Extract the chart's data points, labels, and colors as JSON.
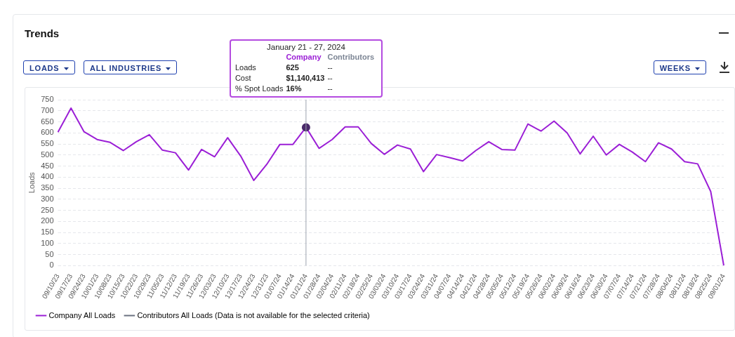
{
  "chart_data": {
    "type": "line",
    "title": "Trends",
    "ylabel": "Loads",
    "categories": [
      "09/10/23",
      "09/17/23",
      "09/24/23",
      "10/01/23",
      "10/08/23",
      "10/15/23",
      "10/22/23",
      "10/29/23",
      "11/05/23",
      "11/12/23",
      "11/19/23",
      "11/26/23",
      "12/03/23",
      "12/10/23",
      "12/17/23",
      "12/24/23",
      "12/31/23",
      "01/07/24",
      "01/14/24",
      "01/21/24",
      "01/28/24",
      "02/04/24",
      "02/11/24",
      "02/18/24",
      "02/25/24",
      "03/03/24",
      "03/10/24",
      "03/17/24",
      "03/24/24",
      "03/31/24",
      "04/07/24",
      "04/14/24",
      "04/21/24",
      "04/28/24",
      "05/05/24",
      "05/12/24",
      "05/19/24",
      "05/26/24",
      "06/02/24",
      "06/09/24",
      "06/16/24",
      "06/23/24",
      "06/30/24",
      "07/07/24",
      "07/14/24",
      "07/21/24",
      "07/28/24",
      "08/04/24",
      "08/11/24",
      "08/18/24",
      "08/25/24",
      "09/01/24"
    ],
    "series": [
      {
        "name": "Company All Loads",
        "color": "#9b1fd6",
        "values": [
          603,
          712,
          605,
          570,
          557,
          520,
          560,
          592,
          522,
          510,
          432,
          525,
          492,
          578,
          495,
          385,
          458,
          548,
          548,
          625,
          530,
          570,
          627,
          627,
          552,
          503,
          545,
          527,
          425,
          502,
          488,
          473,
          520,
          560,
          525,
          522,
          640,
          608,
          653,
          600,
          505,
          585,
          500,
          548,
          513,
          470,
          555,
          527,
          470,
          460,
          335,
          0
        ]
      },
      {
        "name": "Contributors All Loads (Data is not available for the selected criteria)",
        "color": "#6b7280",
        "values": [
          null,
          null,
          null,
          null,
          null,
          null,
          null,
          null,
          null,
          null,
          null,
          null,
          null,
          null,
          null,
          null,
          null,
          null,
          null,
          null,
          null,
          null,
          null,
          null,
          null,
          null,
          null,
          null,
          null,
          null,
          null,
          null,
          null,
          null,
          null,
          null,
          null,
          null,
          null,
          null,
          null,
          null,
          null,
          null,
          null,
          null,
          null,
          null,
          null,
          null,
          null,
          null
        ]
      }
    ],
    "ylim": [
      0,
      750
    ],
    "yticks": [
      0,
      50,
      100,
      150,
      200,
      250,
      300,
      350,
      400,
      450,
      500,
      550,
      600,
      650,
      700,
      750
    ],
    "grid": "y",
    "legend": "bottom left",
    "marker": "none",
    "line_style": "solid",
    "ref_lines": [
      {
        "axis": "x",
        "value": "01/21/24",
        "color": "#9ca3af"
      }
    ],
    "annotations": [
      "LOADS",
      "ALL INDUSTRIES",
      "WEEKS",
      "January 21 - 27, 2024",
      "Company",
      "Contributors",
      "Loads",
      "625",
      "--",
      "Cost",
      "$1,140,413",
      "--",
      "% Spot Loads",
      "16%",
      "--"
    ]
  }
}
